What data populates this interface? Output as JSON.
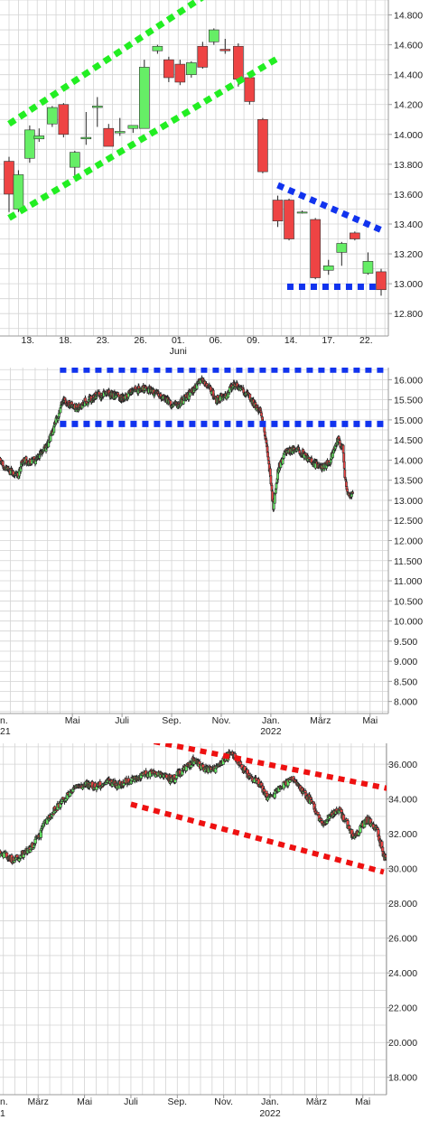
{
  "colors": {
    "up": "#66ee66",
    "down": "#ee4444",
    "grid": "#d4d4d4",
    "frame": "#9a9a9a",
    "green_line": "#22ee22",
    "blue_line": "#1133ee",
    "red_line": "#ee1111"
  },
  "chart_data": [
    {
      "type": "candlestick",
      "title": "",
      "grid": true,
      "ylim": [
        12650,
        14900
      ],
      "y_ticks": [
        "14.800",
        "14.600",
        "14.400",
        "14.200",
        "14.000",
        "13.800",
        "13.600",
        "13.400",
        "13.200",
        "13.000",
        "12.800"
      ],
      "y_tick_values": [
        14800,
        14600,
        14400,
        14200,
        14000,
        13800,
        13600,
        13400,
        13200,
        13000,
        12800
      ],
      "x_ticks": [
        "13.",
        "18.",
        "23.",
        "26.",
        "01.",
        "06.",
        "09.",
        "14.",
        "17.",
        "22."
      ],
      "x_tick_positions": [
        1,
        3,
        5,
        7,
        9,
        11,
        13,
        15,
        17,
        19
      ],
      "x_sublabels": [
        {
          "label": "Juni",
          "index": 9
        }
      ],
      "x_range": [
        0,
        19.8
      ],
      "candles": [
        {
          "x": 0.0,
          "o": 13820,
          "h": 13850,
          "l": 13480,
          "c": 13600
        },
        {
          "x": 0.5,
          "o": 13500,
          "h": 13760,
          "l": 13480,
          "c": 13730
        },
        {
          "x": 1.1,
          "o": 13840,
          "h": 14060,
          "l": 13810,
          "c": 14030
        },
        {
          "x": 1.6,
          "o": 13970,
          "h": 14040,
          "l": 13950,
          "c": 13990
        },
        {
          "x": 2.3,
          "o": 14070,
          "h": 14190,
          "l": 14050,
          "c": 14180
        },
        {
          "x": 2.9,
          "o": 14200,
          "h": 14210,
          "l": 13980,
          "c": 14000
        },
        {
          "x": 3.5,
          "o": 13780,
          "h": 13890,
          "l": 13700,
          "c": 13880
        },
        {
          "x": 4.1,
          "o": 13970,
          "h": 14150,
          "l": 13930,
          "c": 13980
        },
        {
          "x": 4.7,
          "o": 14180,
          "h": 14250,
          "l": 14050,
          "c": 14190
        },
        {
          "x": 5.3,
          "o": 14040,
          "h": 14070,
          "l": 13930,
          "c": 13920
        },
        {
          "x": 5.9,
          "o": 14010,
          "h": 14110,
          "l": 13990,
          "c": 14020
        },
        {
          "x": 6.6,
          "o": 14040,
          "h": 14060,
          "l": 14010,
          "c": 14060
        },
        {
          "x": 7.2,
          "o": 14040,
          "h": 14500,
          "l": 14040,
          "c": 14450
        },
        {
          "x": 7.9,
          "o": 14560,
          "h": 14600,
          "l": 14540,
          "c": 14590
        },
        {
          "x": 8.5,
          "o": 14500,
          "h": 14520,
          "l": 14350,
          "c": 14380
        },
        {
          "x": 9.1,
          "o": 14470,
          "h": 14500,
          "l": 14330,
          "c": 14350
        },
        {
          "x": 9.7,
          "o": 14400,
          "h": 14490,
          "l": 14380,
          "c": 14480
        },
        {
          "x": 10.3,
          "o": 14590,
          "h": 14620,
          "l": 14440,
          "c": 14450
        },
        {
          "x": 10.9,
          "o": 14620,
          "h": 14710,
          "l": 14600,
          "c": 14700
        },
        {
          "x": 11.5,
          "o": 14570,
          "h": 14640,
          "l": 14540,
          "c": 14560
        },
        {
          "x": 12.2,
          "o": 14590,
          "h": 14610,
          "l": 14320,
          "c": 14370
        },
        {
          "x": 12.8,
          "o": 14380,
          "h": 14400,
          "l": 14200,
          "c": 14220
        },
        {
          "x": 13.5,
          "o": 14100,
          "h": 14110,
          "l": 13740,
          "c": 13750
        },
        {
          "x": 14.3,
          "o": 13560,
          "h": 13590,
          "l": 13380,
          "c": 13420
        },
        {
          "x": 14.9,
          "o": 13560,
          "h": 13570,
          "l": 13290,
          "c": 13300
        },
        {
          "x": 15.6,
          "o": 13480,
          "h": 13490,
          "l": 13470,
          "c": 13480
        },
        {
          "x": 16.3,
          "o": 13430,
          "h": 13440,
          "l": 13030,
          "c": 13040
        },
        {
          "x": 17.0,
          "o": 13090,
          "h": 13160,
          "l": 13060,
          "c": 13120
        },
        {
          "x": 17.7,
          "o": 13210,
          "h": 13280,
          "l": 13120,
          "c": 13270
        },
        {
          "x": 18.4,
          "o": 13340,
          "h": 13350,
          "l": 13290,
          "c": 13300
        },
        {
          "x": 19.1,
          "o": 13070,
          "h": 13210,
          "l": 13060,
          "c": 13150
        },
        {
          "x": 19.8,
          "o": 13080,
          "h": 13100,
          "l": 12920,
          "c": 12960
        }
      ],
      "trend_lines": [
        {
          "color": "green",
          "from": [
            0.0,
            14070
          ],
          "to": [
            10.8,
            14960
          ]
        },
        {
          "color": "green",
          "from": [
            0.0,
            13440
          ],
          "to": [
            14.3,
            14510
          ]
        },
        {
          "color": "blue",
          "from": [
            14.3,
            13660
          ],
          "to": [
            19.8,
            13360
          ]
        },
        {
          "color": "blue",
          "from": [
            14.8,
            12980
          ],
          "to": [
            19.8,
            12980
          ]
        }
      ]
    },
    {
      "type": "candlestick",
      "title": "",
      "grid": true,
      "ylim": [
        7700,
        16300
      ],
      "y_ticks": [
        "16.000",
        "15.500",
        "15.000",
        "14.500",
        "14.000",
        "13.500",
        "13.000",
        "12.500",
        "12.000",
        "11.500",
        "11.000",
        "10.500",
        "10.000",
        "9.500",
        "9.000",
        "8.500",
        "8.000"
      ],
      "y_tick_values": [
        16000,
        15500,
        15000,
        14500,
        14000,
        13500,
        13000,
        12500,
        12000,
        11500,
        11000,
        10500,
        10000,
        9500,
        9000,
        8500,
        8000
      ],
      "x_ticks": [
        "Mai",
        "Juli",
        "Sep.",
        "Nov.",
        "Jan.",
        "März",
        "Mai"
      ],
      "x_tick_positions": [
        3,
        5,
        7,
        9,
        11,
        13,
        15
      ],
      "x_sublabels": [
        {
          "label": "2022",
          "index": 11
        },
        {
          "label": "21",
          "index": -1
        }
      ],
      "x_edge_ticks": [
        {
          "label": "n.",
          "x": -0.1
        }
      ],
      "x_range": [
        -0.1,
        16.1
      ],
      "candle_interval": 0.02,
      "candle_width": 0.08,
      "path": [
        [
          -0.1,
          13900
        ],
        [
          0.1,
          14000
        ],
        [
          0.3,
          13800
        ],
        [
          0.6,
          13700
        ],
        [
          0.8,
          13600
        ],
        [
          1.0,
          14000
        ],
        [
          1.3,
          13950
        ],
        [
          1.5,
          14000
        ],
        [
          1.8,
          14200
        ],
        [
          2.0,
          14400
        ],
        [
          2.2,
          14700
        ],
        [
          2.4,
          15100
        ],
        [
          2.6,
          15450
        ],
        [
          2.9,
          15400
        ],
        [
          3.2,
          15300
        ],
        [
          3.5,
          15450
        ],
        [
          4.0,
          15600
        ],
        [
          4.5,
          15650
        ],
        [
          5.0,
          15550
        ],
        [
          5.3,
          15650
        ],
        [
          5.8,
          15800
        ],
        [
          6.3,
          15700
        ],
        [
          6.7,
          15550
        ],
        [
          7.1,
          15350
        ],
        [
          7.4,
          15450
        ],
        [
          7.8,
          15700
        ],
        [
          8.2,
          16000
        ],
        [
          8.5,
          15800
        ],
        [
          8.8,
          15500
        ],
        [
          9.2,
          15600
        ],
        [
          9.5,
          15900
        ],
        [
          9.8,
          15800
        ],
        [
          10.1,
          15600
        ],
        [
          10.4,
          15300
        ],
        [
          10.6,
          15200
        ],
        [
          10.8,
          14500
        ],
        [
          11.0,
          13500
        ],
        [
          11.1,
          12800
        ],
        [
          11.3,
          13800
        ],
        [
          11.6,
          14200
        ],
        [
          12.0,
          14300
        ],
        [
          12.4,
          14100
        ],
        [
          12.8,
          13900
        ],
        [
          13.1,
          13800
        ],
        [
          13.4,
          14000
        ],
        [
          13.7,
          14500
        ],
        [
          13.9,
          14300
        ],
        [
          14.0,
          13500
        ],
        [
          14.1,
          13100
        ],
        [
          14.3,
          13200
        ]
      ],
      "trend_lines": [
        {
          "color": "blue",
          "from": [
            2.5,
            16250
          ],
          "to": [
            16.1,
            16250
          ]
        },
        {
          "color": "blue",
          "from": [
            2.5,
            14900
          ],
          "to": [
            16.1,
            14900
          ]
        }
      ]
    },
    {
      "type": "candlestick",
      "title": "",
      "grid": true,
      "ylim": [
        17000,
        37200
      ],
      "y_ticks": [
        "36.000",
        "34.000",
        "32.000",
        "30.000",
        "28.000",
        "26.000",
        "24.000",
        "22.000",
        "20.000",
        "18.000"
      ],
      "y_tick_values": [
        36000,
        34000,
        32000,
        30000,
        28000,
        26000,
        24000,
        22000,
        20000,
        18000
      ],
      "x_ticks": [
        "März",
        "Mai",
        "Juli",
        "Sep.",
        "Nov.",
        "Jan.",
        "März",
        "Mai"
      ],
      "x_tick_positions": [
        2,
        4,
        6,
        8,
        10,
        12,
        14,
        16
      ],
      "x_sublabels": [
        {
          "label": "2022",
          "index": 12
        },
        {
          "label": "1",
          "index": -1
        }
      ],
      "x_edge_ticks": [
        {
          "label": "n.",
          "x": 0.2
        }
      ],
      "x_range": [
        0.2,
        17.1
      ],
      "candle_interval": 0.03,
      "candle_width": 0.11,
      "path": [
        [
          0.2,
          31000
        ],
        [
          0.6,
          30800
        ],
        [
          0.9,
          30500
        ],
        [
          1.3,
          30800
        ],
        [
          1.7,
          31200
        ],
        [
          2.0,
          31800
        ],
        [
          2.3,
          32600
        ],
        [
          2.7,
          33300
        ],
        [
          3.1,
          34000
        ],
        [
          3.5,
          34500
        ],
        [
          4.0,
          34900
        ],
        [
          4.5,
          34700
        ],
        [
          5.0,
          35000
        ],
        [
          5.5,
          34800
        ],
        [
          6.0,
          35100
        ],
        [
          6.5,
          35400
        ],
        [
          7.0,
          35500
        ],
        [
          7.4,
          35300
        ],
        [
          7.8,
          35100
        ],
        [
          8.2,
          35600
        ],
        [
          8.7,
          36200
        ],
        [
          9.1,
          35800
        ],
        [
          9.5,
          35600
        ],
        [
          10.0,
          36200
        ],
        [
          10.3,
          36700
        ],
        [
          10.6,
          36200
        ],
        [
          10.9,
          35600
        ],
        [
          11.2,
          35200
        ],
        [
          11.6,
          34800
        ],
        [
          11.9,
          34000
        ],
        [
          12.2,
          34300
        ],
        [
          12.6,
          34900
        ],
        [
          13.0,
          35100
        ],
        [
          13.3,
          34600
        ],
        [
          13.7,
          34000
        ],
        [
          14.0,
          33200
        ],
        [
          14.3,
          32500
        ],
        [
          14.6,
          33100
        ],
        [
          15.0,
          33400
        ],
        [
          15.3,
          32600
        ],
        [
          15.6,
          31800
        ],
        [
          15.9,
          32300
        ],
        [
          16.2,
          32800
        ],
        [
          16.6,
          32300
        ],
        [
          16.9,
          30800
        ],
        [
          17.1,
          30300
        ]
      ],
      "trend_lines": [
        {
          "color": "red",
          "from": [
            7.0,
            37300
          ],
          "to": [
            17.1,
            34600
          ]
        },
        {
          "color": "red",
          "from": [
            6.0,
            33700
          ],
          "to": [
            16.9,
            29800
          ]
        }
      ]
    }
  ]
}
